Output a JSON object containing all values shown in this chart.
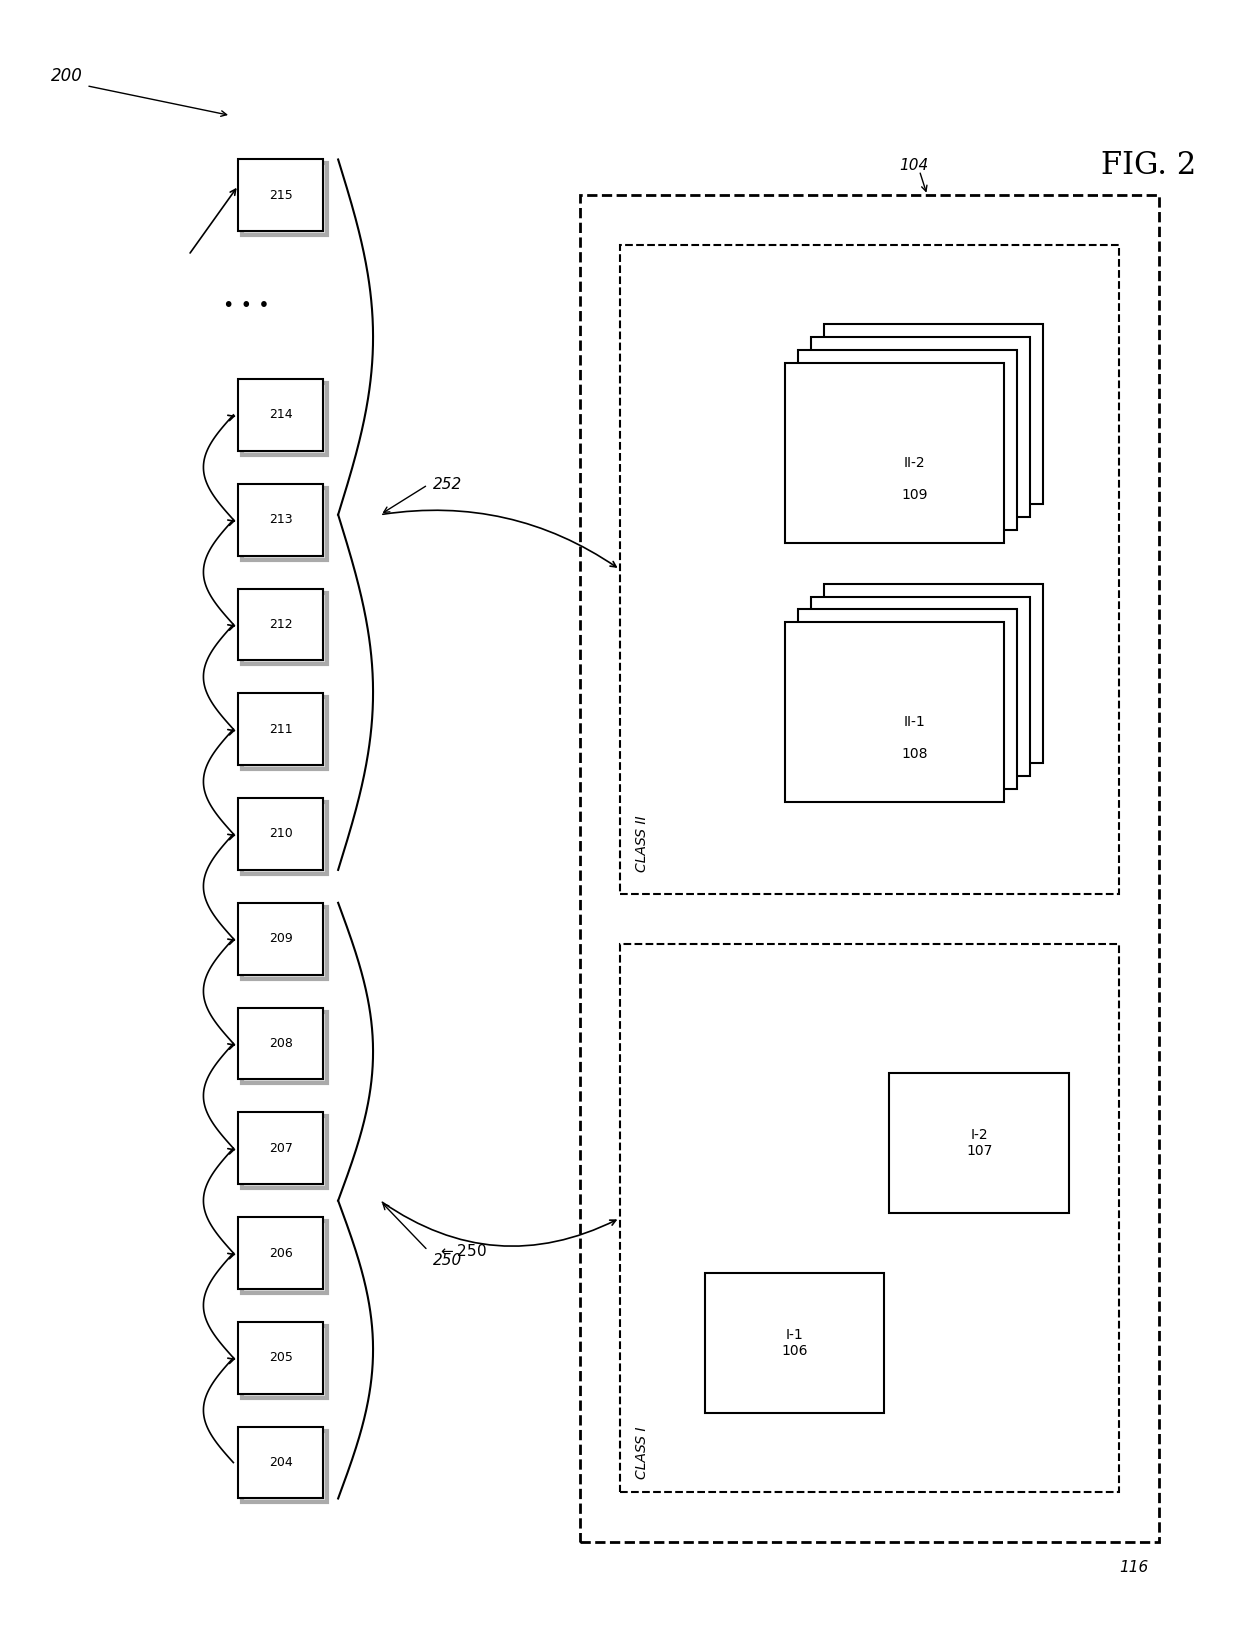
{
  "bg_color": "#ffffff",
  "fig_label": "FIG. 2",
  "ref_200": "200",
  "ref_250": "250",
  "ref_252": "252",
  "ref_104": "104",
  "ref_116": "116",
  "nodes": [
    {
      "id": 204,
      "label": "204"
    },
    {
      "id": 205,
      "label": "205"
    },
    {
      "id": 206,
      "label": "206"
    },
    {
      "id": 207,
      "label": "207"
    },
    {
      "id": 208,
      "label": "208"
    },
    {
      "id": 209,
      "label": "209"
    },
    {
      "id": 210,
      "label": "210"
    },
    {
      "id": 211,
      "label": "211"
    },
    {
      "id": 212,
      "label": "212"
    },
    {
      "id": 213,
      "label": "213"
    },
    {
      "id": 214,
      "label": "214"
    },
    {
      "id": 215,
      "label": "215"
    }
  ],
  "class1_label": "CLASS I",
  "class2_label": "CLASS II",
  "subgroup1": [
    {
      "id": "I-1",
      "ref": "106"
    },
    {
      "id": "I-2",
      "ref": "107"
    }
  ],
  "subgroup2": [
    {
      "id": "II-1",
      "ref": "108"
    },
    {
      "id": "II-2",
      "ref": "109"
    }
  ]
}
